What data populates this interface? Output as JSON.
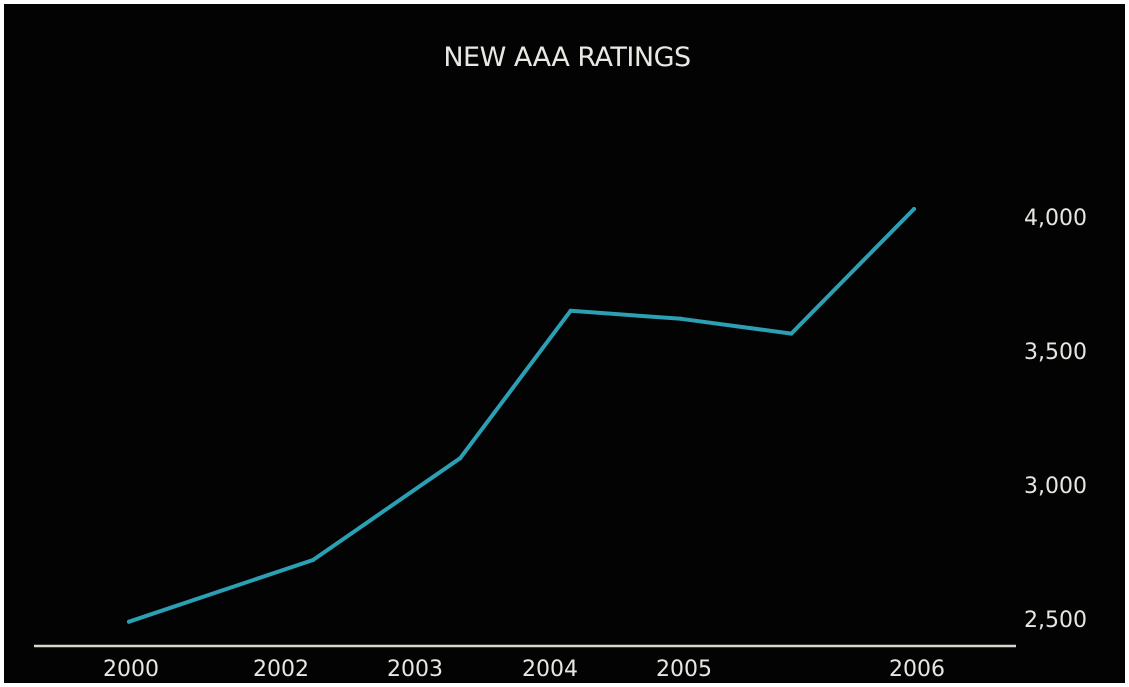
{
  "chart_data": {
    "type": "line",
    "title": "NEW AAA RATINGS",
    "xlabel": "",
    "ylabel": "",
    "categories": [
      "2000",
      "2002",
      "2003",
      "2004",
      "2005",
      "2006"
    ],
    "x": [
      2000,
      2001.5,
      2002.7,
      2003.6,
      2004.5,
      2005.4,
      2006.4
    ],
    "values": [
      2490,
      2720,
      3100,
      3650,
      3620,
      3565,
      4030
    ],
    "y_ticks": [
      2500,
      3000,
      3500,
      4000
    ],
    "y_tick_labels": [
      "2,500",
      "3,000",
      "3,500",
      "4,000"
    ],
    "ylim": [
      2450,
      4300
    ],
    "y_axis_side": "right",
    "grid": false,
    "colors": {
      "background": "#030303",
      "line": "#2b9fb3",
      "text": "#e7e7e2",
      "axis": "#d8d8cf"
    }
  }
}
